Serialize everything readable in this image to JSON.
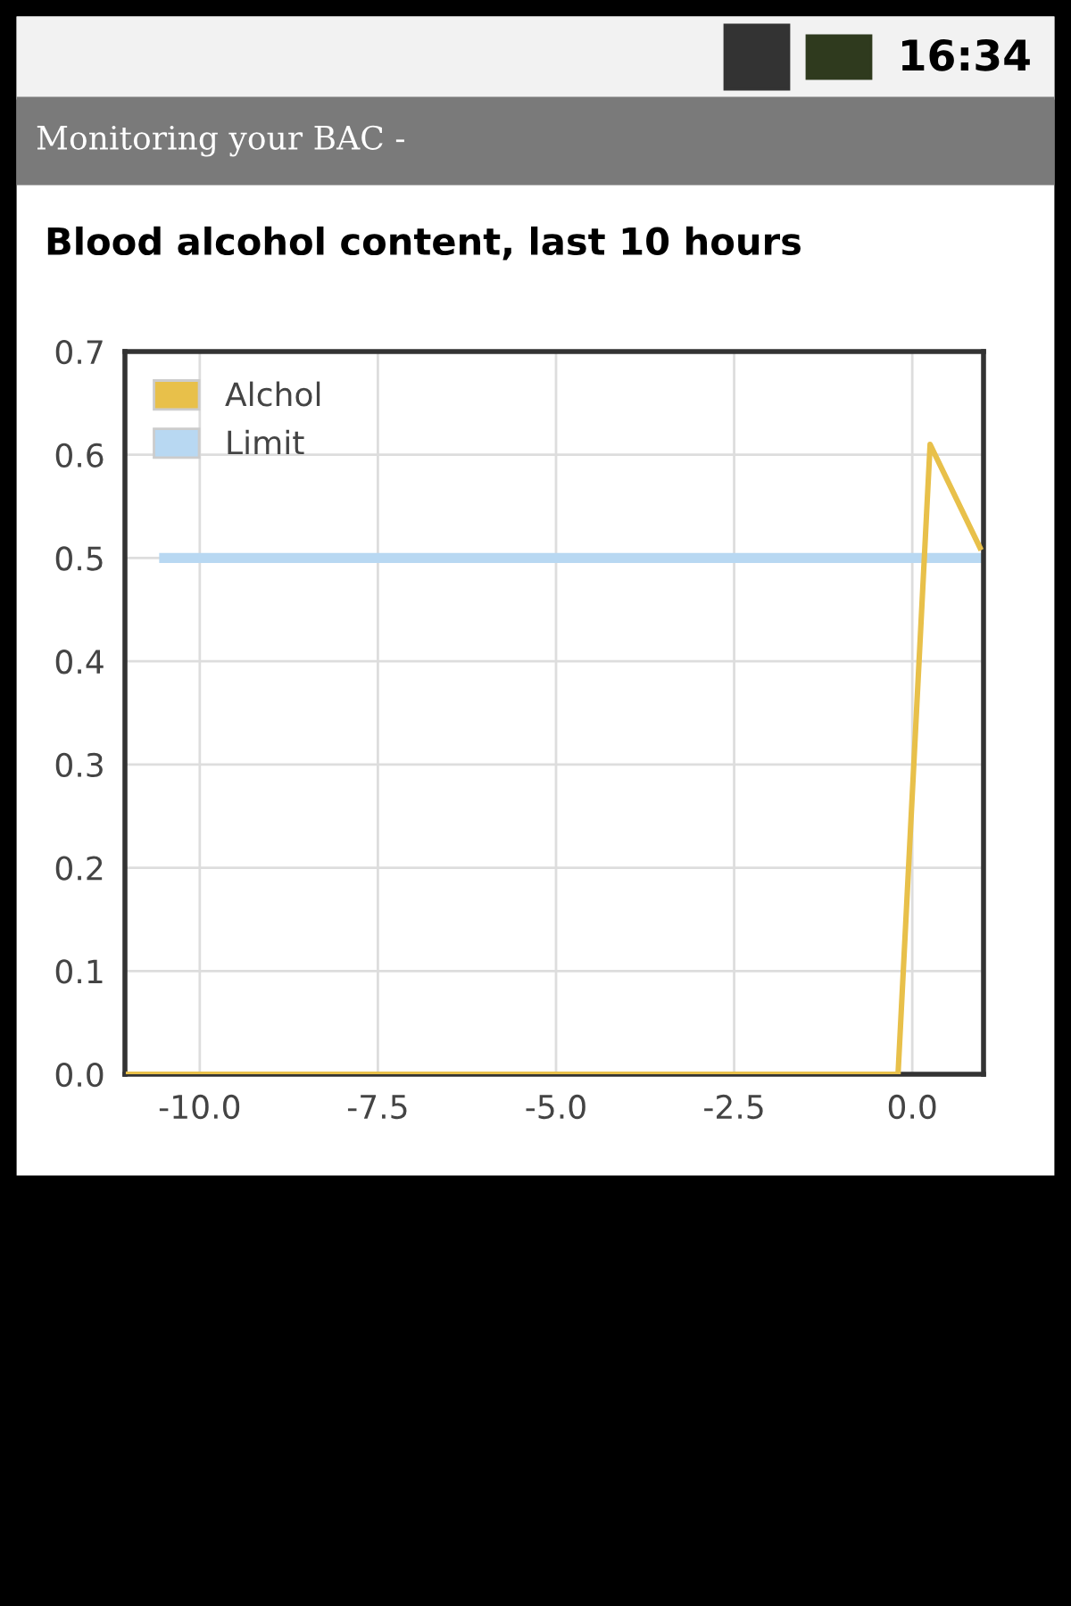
{
  "chart_data": {
    "type": "line",
    "title": "Blood alcohol content, last 10 hours",
    "annotations": [
      "Monitoring your BAC -",
      "16:34"
    ],
    "series": [
      {
        "name": "Alchol",
        "color": "#e8c04a",
        "x": [
          -11.0,
          -0.2,
          0.25,
          0.95
        ],
        "values": [
          0,
          0,
          0.61,
          0.51
        ]
      },
      {
        "name": "Limit",
        "color": "#b8d8f2",
        "x": [
          -10.5,
          1.0
        ],
        "values": [
          0.5,
          0.5
        ]
      }
    ],
    "xlim": [
      -11.05,
      1.0
    ],
    "xticks": [
      {
        "value": -10,
        "label": "-10.0"
      },
      {
        "value": -7.5,
        "label": "-7.5"
      },
      {
        "value": -5,
        "label": "-5.0"
      },
      {
        "value": -2.5,
        "label": "-2.5"
      },
      {
        "value": 0,
        "label": "0.0"
      }
    ],
    "ylim": [
      0,
      0.7
    ],
    "yticks": [
      {
        "value": 0,
        "label": "0.0"
      },
      {
        "value": 0.1,
        "label": "0.1"
      },
      {
        "value": 0.2,
        "label": "0.2"
      },
      {
        "value": 0.3,
        "label": "0.3"
      },
      {
        "value": 0.4,
        "label": "0.4"
      },
      {
        "value": 0.5,
        "label": "0.5"
      },
      {
        "value": 0.6,
        "label": "0.6"
      },
      {
        "value": 0.7,
        "label": "0.7"
      }
    ],
    "grid": true,
    "legend": "top left",
    "marker": "none",
    "line_style": "solid"
  }
}
